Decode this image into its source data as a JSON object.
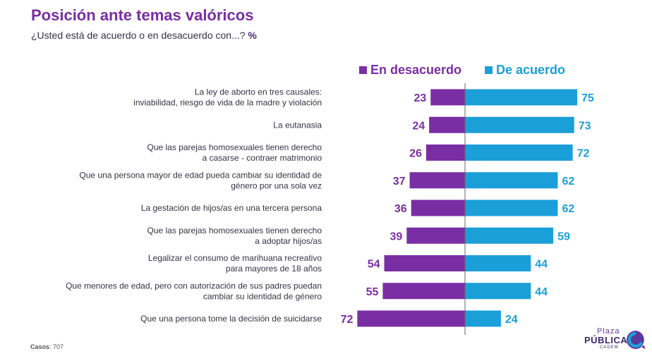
{
  "title": "Posición ante temas valóricos",
  "subtitle": "¿Usted está de acuerdo o en desacuerdo con...?",
  "subtitle_unit": "%",
  "footer": {
    "label": "Casos",
    "value": "707"
  },
  "logo": {
    "line1": "Plaza",
    "line2": "PÚBLICA",
    "line3": "CADEM"
  },
  "colors": {
    "desacuerdo": "#7a2ea3",
    "acuerdo": "#1a9fd8",
    "divider": "#666666"
  },
  "chart_data": {
    "type": "bar",
    "orientation": "horizontal-diverging",
    "legend_position": "top",
    "categories": [
      [
        "La ley de aborto en tres causales:",
        "inviabilidad, riesgo de vida de la madre y violación"
      ],
      [
        "La eutanasia"
      ],
      [
        "Que las parejas homosexuales tienen derecho",
        "a casarse - contraer matrimonio"
      ],
      [
        "Que una persona mayor de edad pueda cambiar su identidad de",
        "género por una sola vez"
      ],
      [
        "La gestación de hijos/as en una tercera persona"
      ],
      [
        "Que las parejas homosexuales tienen derecho",
        "a adoptar hijos/as"
      ],
      [
        "Legalizar el consumo de marihuana recreativo",
        "para mayores de 18 años"
      ],
      [
        "Que menores de edad, pero con autorización de sus padres puedan",
        "cambiar su identidad de género"
      ],
      [
        "Que una persona tome la decisión de suicidarse"
      ]
    ],
    "series": [
      {
        "name": "En desacuerdo",
        "values": [
          23,
          24,
          26,
          37,
          36,
          39,
          54,
          55,
          72
        ]
      },
      {
        "name": "De acuerdo",
        "values": [
          75,
          73,
          72,
          62,
          62,
          59,
          44,
          44,
          24
        ]
      }
    ]
  }
}
